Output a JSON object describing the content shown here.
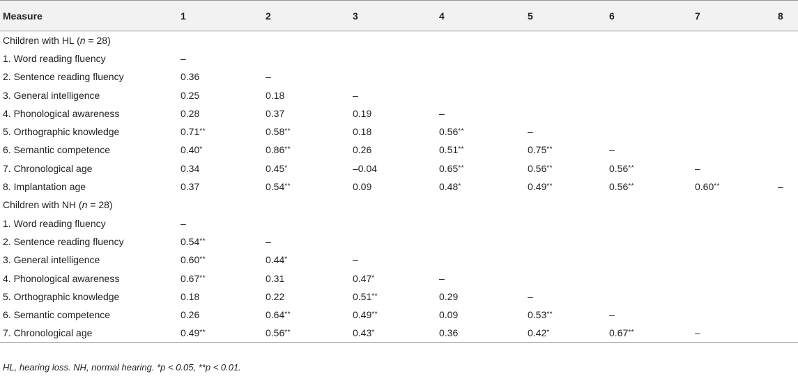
{
  "table": {
    "headers": [
      "Measure",
      "1",
      "2",
      "3",
      "4",
      "5",
      "6",
      "7",
      "8"
    ],
    "rows": [
      [
        "Children with HL (n = 28)",
        "",
        "",
        "",
        "",
        "",
        "",
        "",
        ""
      ],
      [
        "1. Word reading fluency",
        "–",
        "",
        "",
        "",
        "",
        "",
        "",
        ""
      ],
      [
        "2. Sentence reading fluency",
        "0.36",
        "–",
        "",
        "",
        "",
        "",
        "",
        ""
      ],
      [
        "3. General intelligence",
        "0.25",
        "0.18",
        "–",
        "",
        "",
        "",
        "",
        ""
      ],
      [
        "4. Phonological awareness",
        "0.28",
        "0.37",
        "0.19",
        "–",
        "",
        "",
        "",
        ""
      ],
      [
        "5. Orthographic knowledge",
        "0.71**",
        "0.58**",
        "0.18",
        "0.56**",
        "–",
        "",
        "",
        ""
      ],
      [
        "6. Semantic competence",
        "0.40*",
        "0.86**",
        "0.26",
        "0.51**",
        "0.75**",
        "–",
        "",
        ""
      ],
      [
        "7. Chronological age",
        "0.34",
        "0.45*",
        "–0.04",
        "0.65**",
        "0.56**",
        "0.56**",
        "–",
        ""
      ],
      [
        "8. Implantation age",
        "0.37",
        "0.54**",
        "0.09",
        "0.48*",
        "0.49**",
        "0.56**",
        "0.60**",
        "–"
      ],
      [
        "Children with NH (n = 28)",
        "",
        "",
        "",
        "",
        "",
        "",
        "",
        ""
      ],
      [
        "1. Word reading fluency",
        "–",
        "",
        "",
        "",
        "",
        "",
        "",
        ""
      ],
      [
        "2. Sentence reading fluency",
        "0.54**",
        "–",
        "",
        "",
        "",
        "",
        "",
        ""
      ],
      [
        "3. General intelligence",
        "0.60**",
        "0.44*",
        "–",
        "",
        "",
        "",
        "",
        ""
      ],
      [
        "4. Phonological awareness",
        "0.67**",
        "0.31",
        "0.47*",
        "–",
        "",
        "",
        "",
        ""
      ],
      [
        "5. Orthographic knowledge",
        "0.18",
        "0.22",
        "0.51**",
        "0.29",
        "–",
        "",
        "",
        ""
      ],
      [
        "6. Semantic competence",
        "0.26",
        "0.64**",
        "0.49**",
        "0.09",
        "0.53**",
        "–",
        "",
        ""
      ],
      [
        "7. Chronological age",
        "0.49**",
        "0.56**",
        "0.43*",
        "0.36",
        "0.42*",
        "0.67**",
        "–",
        ""
      ]
    ]
  },
  "footnote": "HL, hearing loss. NH, normal hearing. *p < 0.05, **p < 0.01.",
  "colors": {
    "header_bg": "#f2f2f2",
    "rule": "#999999",
    "text": "#222222"
  }
}
